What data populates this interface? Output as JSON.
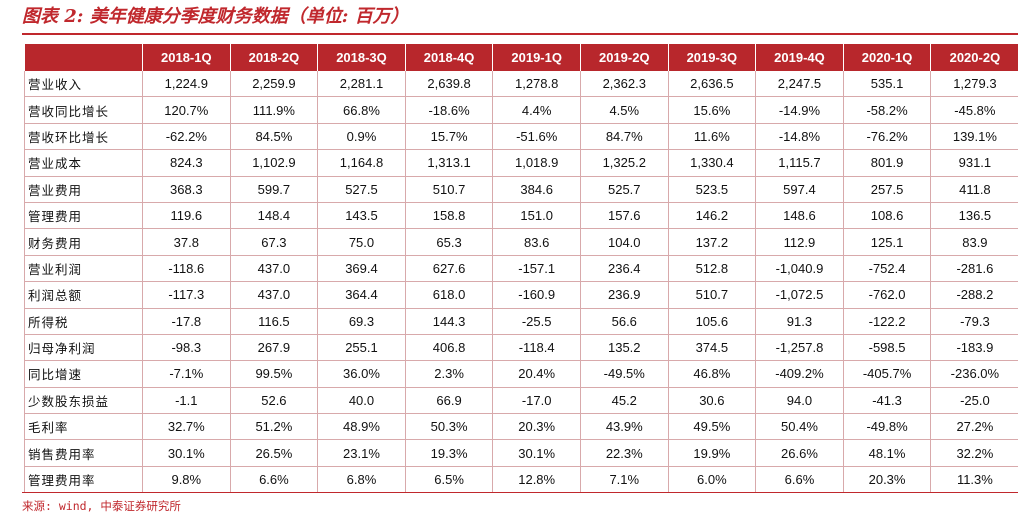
{
  "title": "图表 2:  美年健康分季度财务数据（单位:  百万）",
  "columns": [
    "2018-1Q",
    "2018-2Q",
    "2018-3Q",
    "2018-4Q",
    "2019-1Q",
    "2019-2Q",
    "2019-3Q",
    "2019-4Q",
    "2020-1Q",
    "2020-2Q"
  ],
  "rows": [
    {
      "label": "营业收入",
      "values": [
        "1,224.9",
        "2,259.9",
        "2,281.1",
        "2,639.8",
        "1,278.8",
        "2,362.3",
        "2,636.5",
        "2,247.5",
        "535.1",
        "1,279.3"
      ]
    },
    {
      "label": "营收同比增长",
      "values": [
        "120.7%",
        "111.9%",
        "66.8%",
        "-18.6%",
        "4.4%",
        "4.5%",
        "15.6%",
        "-14.9%",
        "-58.2%",
        "-45.8%"
      ]
    },
    {
      "label": "营收环比增长",
      "values": [
        "-62.2%",
        "84.5%",
        "0.9%",
        "15.7%",
        "-51.6%",
        "84.7%",
        "11.6%",
        "-14.8%",
        "-76.2%",
        "139.1%"
      ]
    },
    {
      "label": "营业成本",
      "values": [
        "824.3",
        "1,102.9",
        "1,164.8",
        "1,313.1",
        "1,018.9",
        "1,325.2",
        "1,330.4",
        "1,115.7",
        "801.9",
        "931.1"
      ]
    },
    {
      "label": "营业费用",
      "values": [
        "368.3",
        "599.7",
        "527.5",
        "510.7",
        "384.6",
        "525.7",
        "523.5",
        "597.4",
        "257.5",
        "411.8"
      ]
    },
    {
      "label": "管理费用",
      "values": [
        "119.6",
        "148.4",
        "143.5",
        "158.8",
        "151.0",
        "157.6",
        "146.2",
        "148.6",
        "108.6",
        "136.5"
      ]
    },
    {
      "label": "财务费用",
      "values": [
        "37.8",
        "67.3",
        "75.0",
        "65.3",
        "83.6",
        "104.0",
        "137.2",
        "112.9",
        "125.1",
        "83.9"
      ]
    },
    {
      "label": "营业利润",
      "values": [
        "-118.6",
        "437.0",
        "369.4",
        "627.6",
        "-157.1",
        "236.4",
        "512.8",
        "-1,040.9",
        "-752.4",
        "-281.6"
      ]
    },
    {
      "label": "利润总额",
      "values": [
        "-117.3",
        "437.0",
        "364.4",
        "618.0",
        "-160.9",
        "236.9",
        "510.7",
        "-1,072.5",
        "-762.0",
        "-288.2"
      ]
    },
    {
      "label": "所得税",
      "values": [
        "-17.8",
        "116.5",
        "69.3",
        "144.3",
        "-25.5",
        "56.6",
        "105.6",
        "91.3",
        "-122.2",
        "-79.3"
      ]
    },
    {
      "label": "归母净利润",
      "values": [
        "-98.3",
        "267.9",
        "255.1",
        "406.8",
        "-118.4",
        "135.2",
        "374.5",
        "-1,257.8",
        "-598.5",
        "-183.9"
      ]
    },
    {
      "label": "同比增速",
      "values": [
        "-7.1%",
        "99.5%",
        "36.0%",
        "2.3%",
        "20.4%",
        "-49.5%",
        "46.8%",
        "-409.2%",
        "-405.7%",
        "-236.0%"
      ]
    },
    {
      "label": "少数股东损益",
      "values": [
        "-1.1",
        "52.6",
        "40.0",
        "66.9",
        "-17.0",
        "45.2",
        "30.6",
        "94.0",
        "-41.3",
        "-25.0"
      ]
    },
    {
      "label": "毛利率",
      "values": [
        "32.7%",
        "51.2%",
        "48.9%",
        "50.3%",
        "20.3%",
        "43.9%",
        "49.5%",
        "50.4%",
        "-49.8%",
        "27.2%"
      ]
    },
    {
      "label": "销售费用率",
      "values": [
        "30.1%",
        "26.5%",
        "23.1%",
        "19.3%",
        "30.1%",
        "22.3%",
        "19.9%",
        "26.6%",
        "48.1%",
        "32.2%"
      ]
    },
    {
      "label": "管理费用率",
      "values": [
        "9.8%",
        "6.6%",
        "6.8%",
        "6.5%",
        "12.8%",
        "7.1%",
        "6.0%",
        "6.6%",
        "20.3%",
        "11.3%"
      ]
    }
  ],
  "source": "来源: wind, 中泰证券研究所",
  "colors": {
    "accent": "#c0282d",
    "header_bg": "#b8272c",
    "grid": "#d8a9ab"
  }
}
